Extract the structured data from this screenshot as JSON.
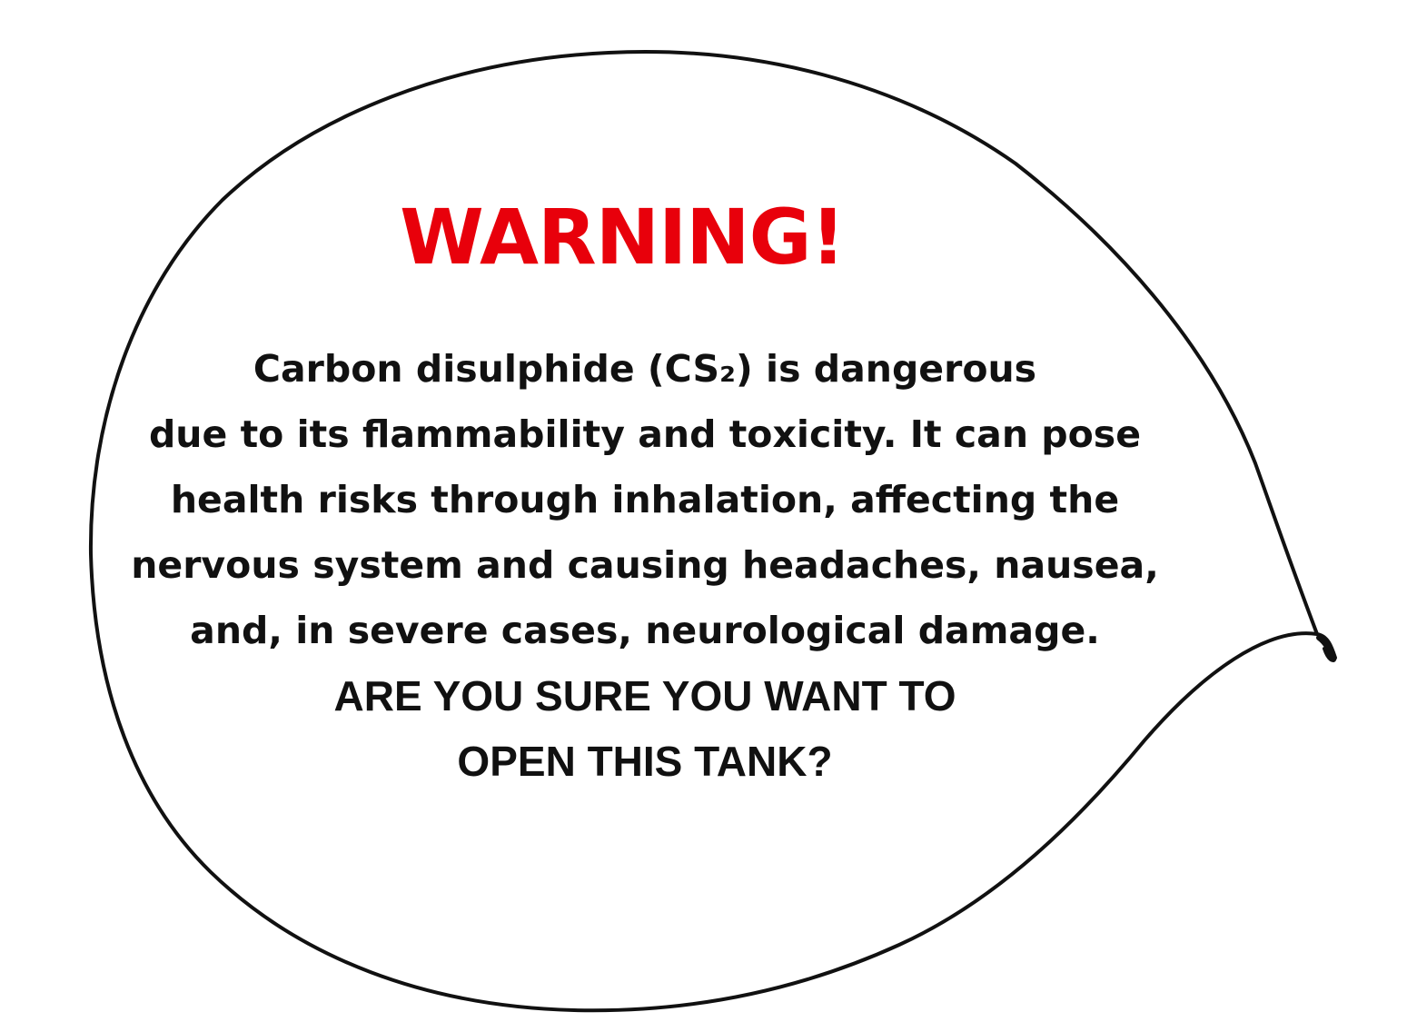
{
  "colors": {
    "warning": "#e8000b",
    "text": "#111111",
    "outline": "#111111",
    "background": "#ffffff"
  },
  "dialog": {
    "title": "WARNING!",
    "message_lines": [
      "Carbon disulphide (CS₂) is dangerous",
      "due to its flammability and toxicity. It can pose",
      "health risks through inhalation, affecting the",
      "nervous system and causing headaches, nausea,",
      "and, in severe cases, neurological damage."
    ],
    "question_lines": [
      "ARE YOU SURE YOU WANT TO",
      "OPEN THIS TANK?"
    ]
  }
}
